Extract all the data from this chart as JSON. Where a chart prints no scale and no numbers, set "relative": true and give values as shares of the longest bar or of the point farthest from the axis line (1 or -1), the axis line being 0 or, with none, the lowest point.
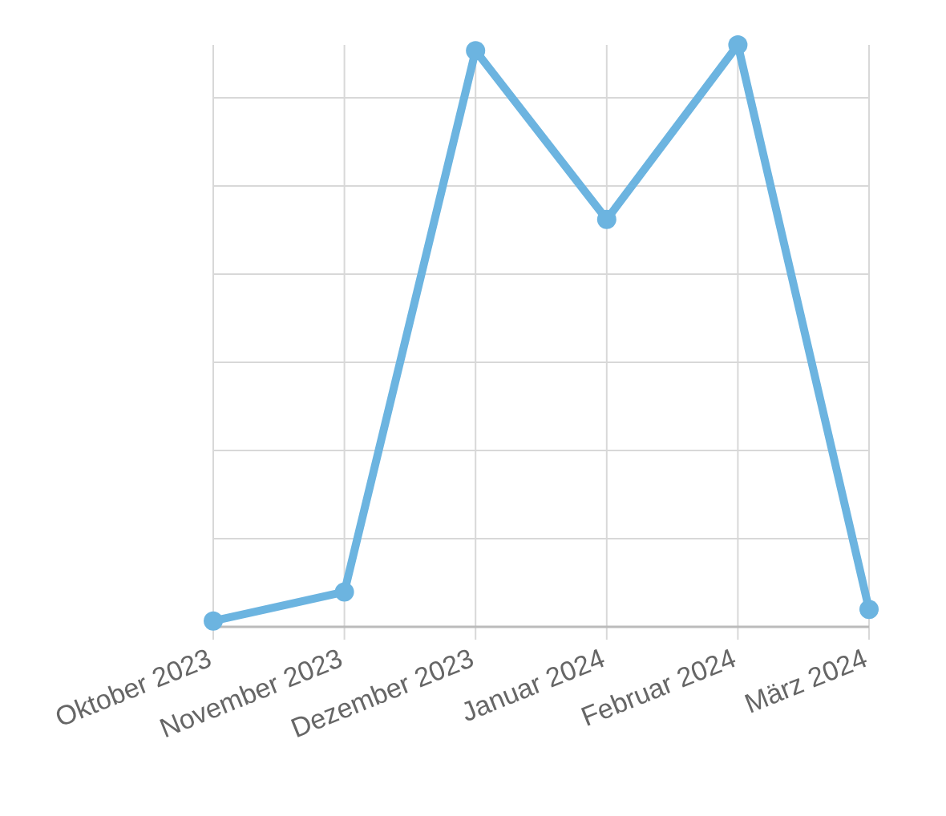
{
  "chart_data": {
    "type": "line",
    "relative": true,
    "categories": [
      "Oktober 2023",
      "November 2023",
      "Dezember 2023",
      "Januar 2024",
      "Februar 2024",
      "März 2024"
    ],
    "series": [
      {
        "color": "#6cb4e0",
        "values": [
          0.01,
          0.06,
          0.99,
          0.7,
          1,
          0.03
        ]
      }
    ],
    "grid": true,
    "marker": "circle",
    "line_style": "solid"
  }
}
